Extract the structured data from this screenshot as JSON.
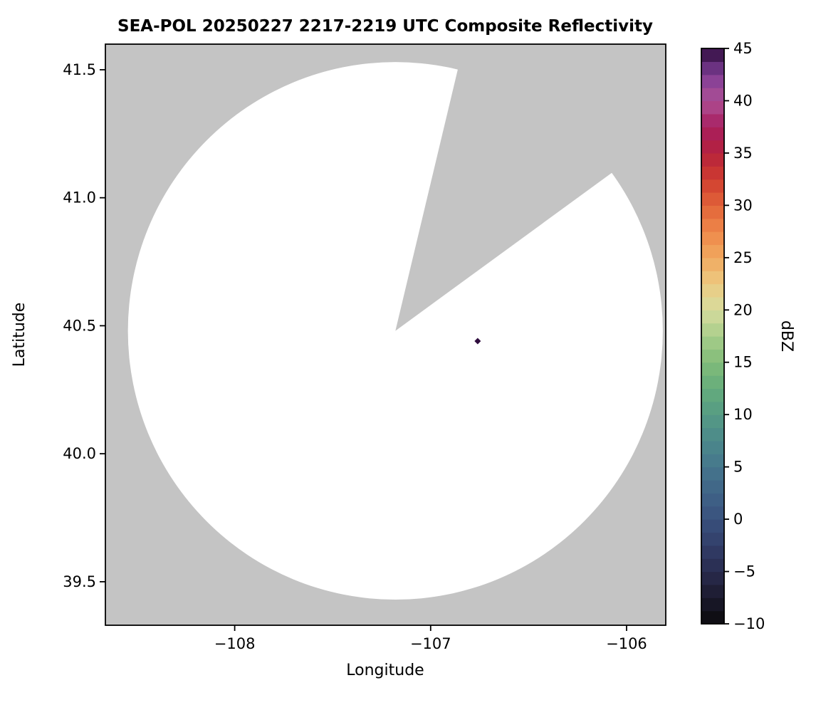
{
  "figure": {
    "background": "#ffffff"
  },
  "chart_data": {
    "type": "radar_composite_reflectivity_map",
    "title": "SEA-POL 20250227 2217-2219 UTC Composite Reflectivity",
    "xlabel": "Longitude",
    "ylabel": "Latitude",
    "xlim": [
      -108.66,
      -105.8
    ],
    "ylim": [
      39.33,
      41.6
    ],
    "xticks": [
      -108,
      -107,
      -106
    ],
    "xtick_labels": [
      "−108",
      "−107",
      "−106"
    ],
    "yticks": [
      41.5,
      41.0,
      40.5,
      40.0,
      39.5
    ],
    "ytick_labels": [
      "41.5",
      "41.0",
      "40.5",
      "40.0",
      "39.5"
    ],
    "grid": false,
    "outside_color": "#c4c4c4",
    "coverage_color": "#ffffff",
    "frame_color": "#000000",
    "radar": {
      "lon": -107.18,
      "lat": 40.48,
      "range_deg_lon": 1.365,
      "range_deg_lat": 1.05
    },
    "blocked_sector_azimuth_deg": [
      13.5,
      54.0
    ],
    "points": [
      {
        "lon": -106.76,
        "lat": 40.44,
        "value_dbz": 45
      }
    ],
    "colorbar": {
      "label": "dBZ",
      "min": -10,
      "max": 45,
      "ticks": [
        45,
        40,
        35,
        30,
        25,
        20,
        15,
        10,
        5,
        0,
        -5,
        -10
      ],
      "tick_labels": [
        "45",
        "40",
        "35",
        "30",
        "25",
        "20",
        "15",
        "10",
        "5",
        "0",
        "−5",
        "−10"
      ],
      "band_step": 1.25,
      "colormap_stops": [
        [
          -10.0,
          "#0b0a0c"
        ],
        [
          -7.5,
          "#1b1a2d"
        ],
        [
          -5.0,
          "#292b4e"
        ],
        [
          -2.5,
          "#323e69"
        ],
        [
          0.0,
          "#39517d"
        ],
        [
          2.5,
          "#3f6387"
        ],
        [
          5.0,
          "#45768c"
        ],
        [
          7.5,
          "#4c888b"
        ],
        [
          10.0,
          "#559a84"
        ],
        [
          12.5,
          "#65ac7c"
        ],
        [
          15.0,
          "#81bc79"
        ],
        [
          17.5,
          "#a8cd8a"
        ],
        [
          20.0,
          "#d6dc9e"
        ],
        [
          22.5,
          "#edca82"
        ],
        [
          25.0,
          "#f0a95f"
        ],
        [
          27.5,
          "#ee884a"
        ],
        [
          30.0,
          "#e26439"
        ],
        [
          32.5,
          "#cf3d30"
        ],
        [
          35.0,
          "#b5223c"
        ],
        [
          37.5,
          "#a81e5e"
        ],
        [
          40.0,
          "#ad4f94"
        ],
        [
          42.5,
          "#7f3e97"
        ],
        [
          45.0,
          "#2f0d3e"
        ]
      ]
    }
  }
}
